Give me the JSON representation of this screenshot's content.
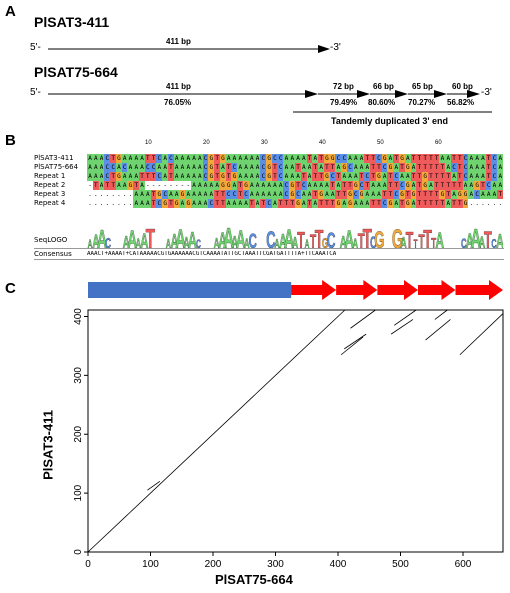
{
  "panel_a": {
    "letter": "A",
    "seq1_name": "PlSAT3-411",
    "seq1_five": "5'-",
    "seq1_three": "-3'",
    "seq1_length": "411 bp",
    "seq2_name": "PlSAT75-664",
    "seq2_five": "5'-",
    "seq2_three": "-3'",
    "seq2_main_length": "411 bp",
    "seq2_main_pct": "76.05%",
    "repeats": [
      {
        "length": "72 bp",
        "pct": "79.49%"
      },
      {
        "length": "66 bp",
        "pct": "80.60%"
      },
      {
        "length": "65 bp",
        "pct": "70.27%"
      },
      {
        "length": "60 bp",
        "pct": "56.82%"
      }
    ],
    "bracket_label": "Tandemly duplicated 3' end"
  },
  "panel_b": {
    "letter": "B",
    "ruler": [
      "10",
      "20",
      "30",
      "40",
      "50",
      "60"
    ],
    "rows": [
      {
        "name": "PlSAT3-411",
        "seq": "AAACTGAAAATTCACAAAAACGTGAAAAAACGCCAAAATATGGCCAAATTCGATGATTTTTAATTCAAATCA"
      },
      {
        "name": "PlSAT75-664",
        "seq": "AAACCACAAACCAATAAAAACGTATCAAAACGTCAATAATATTAGCAAATTCGATGATTTTTACTCAAATCA"
      },
      {
        "name": "Repeat 1",
        "seq": "AAACTGAAATTTCATAAAAACGTGTGAAAACGTCAAATATTGCTAAATCTGATCAATTGTTTTATCAAATCA"
      },
      {
        "name": "Repeat 2",
        "seq": "-TATTAAGTA--------AAAAAGGATGAAAAAACGTCAAAATATTGCTAAATTCGATGATTTTTAAGTCAAATCA"
      },
      {
        "name": "Repeat 3",
        "seq": "........AAATGCAAGAAAAATTCCTCAAAAAACGCAATGAATTGCGAAATTCGTGTTTTGTAGGACAAATCA"
      },
      {
        "name": "Repeat 4",
        "seq": "........AAATCGTGAGAAACTTAAAATATCATTTGATATTTGAGAAATTCGATGATTTTTATTG......"
      }
    ],
    "logo_label": "SeqLOGO",
    "consensus_label": "Consensus",
    "consensus_seq": "AAACT+AAAAT+CATAAAAACGTGAAAAAACGTCAAAATATTGCTAAATTCGATGATTTTA+TTCAAATCA",
    "logo_text": "AAAC  AAAAT  AAAAAC  AAAAAAC  CAAAATATTGC AAATTCG  GATTTTTA   CAAATCA",
    "base_colors": {
      "A": "#6fd36f",
      "C": "#5b8fe6",
      "G": "#f2a93a",
      "T": "#ef5a5a",
      "-": "#ffffff",
      ".": "#ffffff"
    }
  },
  "panel_c": {
    "letter": "C",
    "bar_blue": "#4472c4",
    "arrow_red": "#ff0000",
    "xlabel": "PlSAT75-664",
    "ylabel": "PlSAT3-411",
    "xticks": [
      "0",
      "100",
      "200",
      "300",
      "400",
      "500",
      "600"
    ],
    "yticks": [
      "0",
      "100",
      "200",
      "300",
      "400"
    ]
  },
  "chart_data": {
    "type": "scatter",
    "xlim": [
      0,
      664
    ],
    "ylim": [
      0,
      411
    ],
    "xlabel": "PlSAT75-664",
    "ylabel": "PlSAT3-411",
    "bar_segments": [
      {
        "kind": "block",
        "start": 0,
        "end": 325
      },
      {
        "kind": "arrow",
        "start": 325,
        "end": 397
      },
      {
        "kind": "arrow",
        "start": 397,
        "end": 463
      },
      {
        "kind": "arrow",
        "start": 463,
        "end": 528
      },
      {
        "kind": "arrow",
        "start": 528,
        "end": 588
      },
      {
        "kind": "arrow",
        "start": 588,
        "end": 664
      }
    ],
    "series": [
      {
        "points": [
          [
            0,
            0
          ],
          [
            411,
            411
          ]
        ]
      },
      {
        "points": [
          [
            95,
            105
          ],
          [
            115,
            120
          ]
        ]
      },
      {
        "points": [
          [
            405,
            335
          ],
          [
            440,
            365
          ]
        ]
      },
      {
        "points": [
          [
            410,
            345
          ],
          [
            445,
            370
          ]
        ]
      },
      {
        "points": [
          [
            420,
            380
          ],
          [
            460,
            411
          ]
        ]
      },
      {
        "points": [
          [
            485,
            370
          ],
          [
            520,
            395
          ]
        ]
      },
      {
        "points": [
          [
            490,
            385
          ],
          [
            525,
            411
          ]
        ]
      },
      {
        "points": [
          [
            540,
            360
          ],
          [
            580,
            395
          ]
        ]
      },
      {
        "points": [
          [
            555,
            395
          ],
          [
            575,
            411
          ]
        ]
      },
      {
        "points": [
          [
            595,
            335
          ],
          [
            664,
            405
          ]
        ]
      }
    ]
  }
}
